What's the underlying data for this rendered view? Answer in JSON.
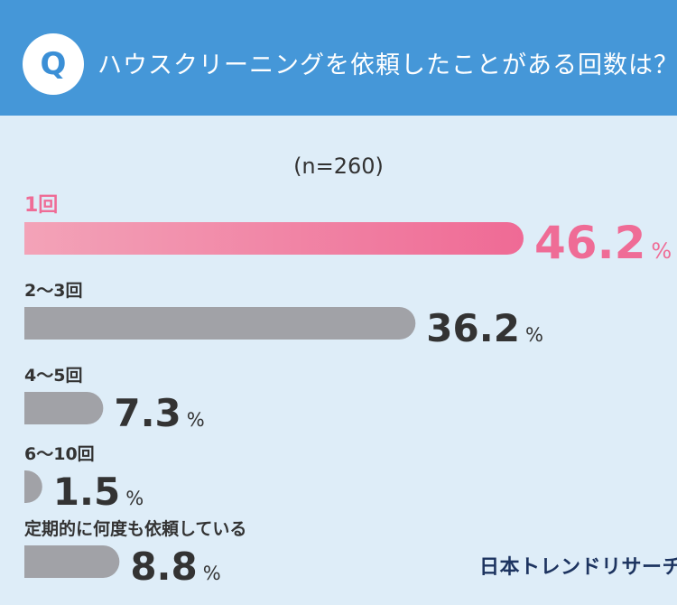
{
  "header": {
    "badge": "Q",
    "question": "ハウスクリーニングを依頼したことがある回数は？"
  },
  "sample": "(n=260)",
  "brand": "日本トレンドリサーチ",
  "colors": {
    "header_bg": "#4597d8",
    "highlight": "#ef6c96",
    "bar_gray": "#a1a2a7",
    "text_dark": "#333333"
  },
  "chart_data": {
    "type": "bar",
    "orientation": "horizontal",
    "title": "ハウスクリーニングを依頼したことがある回数は？",
    "categories": [
      "1回",
      "2〜3回",
      "4〜5回",
      "6〜10回",
      "定期的に何度も依頼している"
    ],
    "values": [
      46.2,
      36.2,
      7.3,
      1.5,
      8.8
    ],
    "value_labels": [
      "46.2",
      "36.2",
      "7.3",
      "1.5",
      "8.8"
    ],
    "unit": "%",
    "highlight_index": 0,
    "xlim": [
      0,
      46.2
    ]
  }
}
